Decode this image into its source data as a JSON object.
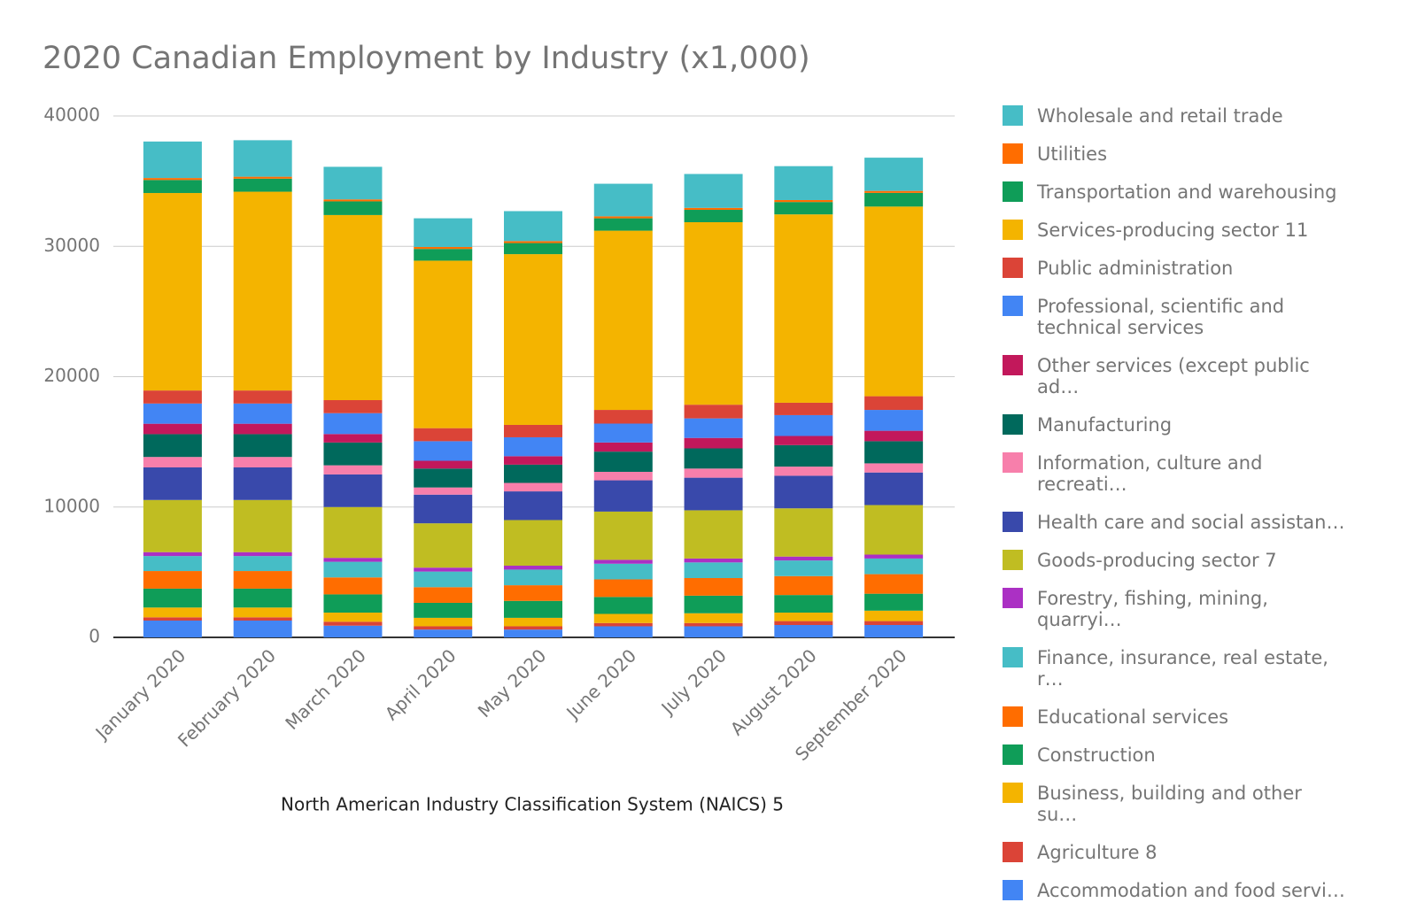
{
  "chart_data": {
    "type": "stacked_bar",
    "title": "2020 Canadian Employment by Industry (x1,000)",
    "x_label": "North American Industry Classification System (NAICS) 5",
    "categories": [
      "January 2020",
      "February 2020",
      "March 2020",
      "April 2020",
      "May 2020",
      "June 2020",
      "July 2020",
      "August 2020",
      "September 2020"
    ],
    "ylim": [
      0,
      40000
    ],
    "yticks": [
      0,
      10000,
      20000,
      30000,
      40000
    ],
    "grid": true,
    "series": [
      {
        "name": "Accommodation and food servi…",
        "color": "#4285f4",
        "values": [
          1290,
          1290,
          900,
          600,
          600,
          850,
          850,
          950,
          950
        ]
      },
      {
        "name": "Agriculture 8",
        "color": "#db4437",
        "values": [
          250,
          250,
          300,
          250,
          250,
          250,
          250,
          300,
          300
        ]
      },
      {
        "name": "Business, building and other su…",
        "color": "#f4b400",
        "values": [
          750,
          750,
          700,
          650,
          650,
          700,
          750,
          650,
          800
        ]
      },
      {
        "name": "Construction",
        "color": "#0f9d58",
        "values": [
          1450,
          1450,
          1400,
          1150,
          1300,
          1300,
          1350,
          1350,
          1300
        ]
      },
      {
        "name": "Educational services",
        "color": "#ff6d00",
        "values": [
          1350,
          1350,
          1300,
          1200,
          1200,
          1350,
          1350,
          1450,
          1500
        ]
      },
      {
        "name": "Finance, insurance, real estate, r…",
        "color": "#46bdc6",
        "values": [
          1150,
          1150,
          1200,
          1200,
          1200,
          1200,
          1200,
          1200,
          1200
        ]
      },
      {
        "name": "Forestry, fishing, mining, quarryi…",
        "color": "#ab30c4",
        "values": [
          300,
          300,
          300,
          300,
          300,
          300,
          300,
          300,
          300
        ]
      },
      {
        "name": "Goods-producing sector 7",
        "color": "#c0bd22",
        "values": [
          4000,
          4000,
          3900,
          3400,
          3500,
          3700,
          3700,
          3700,
          3800
        ]
      },
      {
        "name": "Health care and social assistan…",
        "color": "#3949ab",
        "values": [
          2500,
          2500,
          2500,
          2200,
          2200,
          2400,
          2500,
          2500,
          2500
        ]
      },
      {
        "name": "Information, culture and recreati…",
        "color": "#f77fab",
        "values": [
          800,
          800,
          700,
          550,
          650,
          650,
          700,
          700,
          700
        ]
      },
      {
        "name": "Manufacturing",
        "color": "#00695c",
        "values": [
          1750,
          1750,
          1750,
          1450,
          1400,
          1550,
          1550,
          1650,
          1700
        ]
      },
      {
        "name": "Other services (except public ad…",
        "color": "#c2185b",
        "values": [
          800,
          800,
          650,
          600,
          650,
          700,
          800,
          700,
          800
        ]
      },
      {
        "name": "Professional, scientific and technical services",
        "color": "#4285f4",
        "values": [
          1550,
          1550,
          1600,
          1500,
          1450,
          1450,
          1500,
          1600,
          1600
        ]
      },
      {
        "name": "Public administration",
        "color": "#db4437",
        "values": [
          1000,
          1000,
          1000,
          1000,
          950,
          1050,
          1050,
          950,
          1050
        ]
      },
      {
        "name": "Services-producing sector 11",
        "color": "#f4b400",
        "values": [
          15150,
          15250,
          14200,
          12850,
          13100,
          13750,
          14000,
          14450,
          14550
        ]
      },
      {
        "name": "Transportation and warehousing",
        "color": "#0f9d58",
        "values": [
          1000,
          1000,
          1050,
          900,
          850,
          950,
          950,
          950,
          1050
        ]
      },
      {
        "name": "Utilities",
        "color": "#ff6d00",
        "values": [
          150,
          150,
          150,
          150,
          150,
          150,
          150,
          150,
          150
        ]
      },
      {
        "name": "Wholesale and retail trade",
        "color": "#46bdc6",
        "values": [
          2800,
          2800,
          2500,
          2200,
          2300,
          2500,
          2600,
          2600,
          2550
        ]
      }
    ]
  }
}
